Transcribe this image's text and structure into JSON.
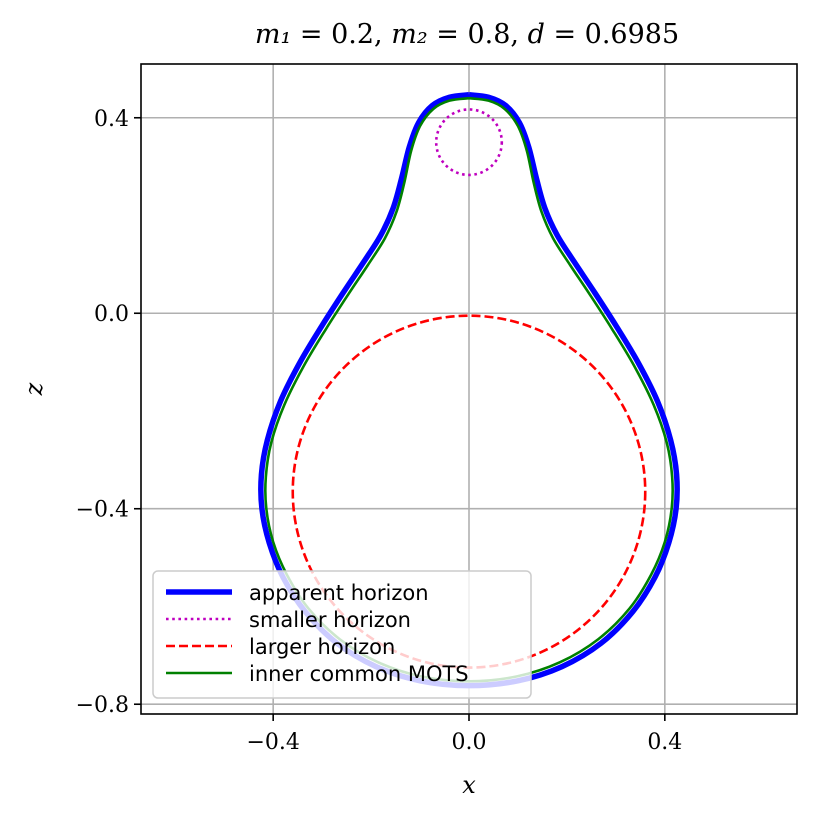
{
  "chart_data": {
    "type": "line",
    "title": "m₁ = 0.2, m₂ = 0.8, d = 0.6985",
    "title_parts": {
      "m1_symbol": "m₁",
      "m1_value": " = 0.2, ",
      "m2_symbol": "m₂",
      "m2_value": " = 0.8, ",
      "d_symbol": "d",
      "d_value": " = 0.6985"
    },
    "xlabel": "x",
    "ylabel": "z",
    "xlim": [
      -0.67,
      0.67
    ],
    "ylim": [
      -0.82,
      0.51
    ],
    "aspect": "equal",
    "grid": true,
    "xticks": [
      -0.4,
      0.0,
      0.4
    ],
    "yticks": [
      -0.8,
      -0.4,
      0.0,
      0.4
    ],
    "xtick_labels": [
      "−0.4",
      "0.0",
      "0.4"
    ],
    "ytick_labels": [
      "−0.8",
      "−0.4",
      "0.0",
      "0.4"
    ],
    "legend_position": "lower-left",
    "series": [
      {
        "name": "apparent horizon",
        "color": "#0000ff",
        "style": "solid",
        "width": "thick",
        "points": [
          [
            0.0,
            0.447
          ],
          [
            0.04,
            0.442
          ],
          [
            0.075,
            0.425
          ],
          [
            0.103,
            0.39
          ],
          [
            0.122,
            0.34
          ],
          [
            0.138,
            0.275
          ],
          [
            0.155,
            0.215
          ],
          [
            0.18,
            0.16
          ],
          [
            0.215,
            0.105
          ],
          [
            0.255,
            0.045
          ],
          [
            0.3,
            -0.025
          ],
          [
            0.345,
            -0.1
          ],
          [
            0.385,
            -0.18
          ],
          [
            0.412,
            -0.26
          ],
          [
            0.424,
            -0.33
          ],
          [
            0.423,
            -0.4
          ],
          [
            0.408,
            -0.47
          ],
          [
            0.38,
            -0.54
          ],
          [
            0.335,
            -0.61
          ],
          [
            0.27,
            -0.675
          ],
          [
            0.19,
            -0.723
          ],
          [
            0.1,
            -0.752
          ],
          [
            0.0,
            -0.762
          ],
          [
            -0.1,
            -0.752
          ],
          [
            -0.19,
            -0.723
          ],
          [
            -0.27,
            -0.675
          ],
          [
            -0.335,
            -0.61
          ],
          [
            -0.38,
            -0.54
          ],
          [
            -0.408,
            -0.47
          ],
          [
            -0.423,
            -0.4
          ],
          [
            -0.424,
            -0.33
          ],
          [
            -0.412,
            -0.26
          ],
          [
            -0.385,
            -0.18
          ],
          [
            -0.345,
            -0.1
          ],
          [
            -0.3,
            -0.025
          ],
          [
            -0.255,
            0.045
          ],
          [
            -0.215,
            0.105
          ],
          [
            -0.18,
            0.16
          ],
          [
            -0.155,
            0.215
          ],
          [
            -0.138,
            0.275
          ],
          [
            -0.122,
            0.34
          ],
          [
            -0.103,
            0.39
          ],
          [
            -0.075,
            0.425
          ],
          [
            -0.04,
            0.442
          ],
          [
            0.0,
            0.447
          ]
        ]
      },
      {
        "name": "smaller horizon",
        "color": "#bf00bf",
        "style": "dotted",
        "width": "normal",
        "circle": {
          "cx": 0.0,
          "cz": 0.35,
          "r": 0.067
        }
      },
      {
        "name": "larger horizon",
        "color": "#ff0000",
        "style": "dashed",
        "width": "normal",
        "circle": {
          "cx": 0.0,
          "cz": -0.365,
          "r": 0.36
        }
      },
      {
        "name": "inner common MOTS",
        "color": "#008000",
        "style": "solid",
        "width": "normal",
        "points": [
          [
            0.0,
            0.44
          ],
          [
            0.04,
            0.435
          ],
          [
            0.073,
            0.418
          ],
          [
            0.1,
            0.383
          ],
          [
            0.118,
            0.333
          ],
          [
            0.132,
            0.268
          ],
          [
            0.148,
            0.208
          ],
          [
            0.172,
            0.153
          ],
          [
            0.207,
            0.098
          ],
          [
            0.247,
            0.038
          ],
          [
            0.292,
            -0.032
          ],
          [
            0.337,
            -0.107
          ],
          [
            0.377,
            -0.187
          ],
          [
            0.404,
            -0.265
          ],
          [
            0.415,
            -0.335
          ],
          [
            0.414,
            -0.4
          ],
          [
            0.4,
            -0.468
          ],
          [
            0.372,
            -0.535
          ],
          [
            0.328,
            -0.604
          ],
          [
            0.264,
            -0.667
          ],
          [
            0.186,
            -0.714
          ],
          [
            0.098,
            -0.743
          ],
          [
            0.0,
            -0.753
          ],
          [
            -0.098,
            -0.743
          ],
          [
            -0.186,
            -0.714
          ],
          [
            -0.264,
            -0.667
          ],
          [
            -0.328,
            -0.604
          ],
          [
            -0.372,
            -0.535
          ],
          [
            -0.4,
            -0.468
          ],
          [
            -0.414,
            -0.4
          ],
          [
            -0.415,
            -0.335
          ],
          [
            -0.404,
            -0.265
          ],
          [
            -0.377,
            -0.187
          ],
          [
            -0.337,
            -0.107
          ],
          [
            -0.292,
            -0.032
          ],
          [
            -0.247,
            0.038
          ],
          [
            -0.207,
            0.098
          ],
          [
            -0.172,
            0.153
          ],
          [
            -0.148,
            0.208
          ],
          [
            -0.132,
            0.268
          ],
          [
            -0.118,
            0.333
          ],
          [
            -0.1,
            0.383
          ],
          [
            -0.073,
            0.418
          ],
          [
            -0.04,
            0.435
          ],
          [
            0.0,
            0.44
          ]
        ]
      }
    ]
  }
}
